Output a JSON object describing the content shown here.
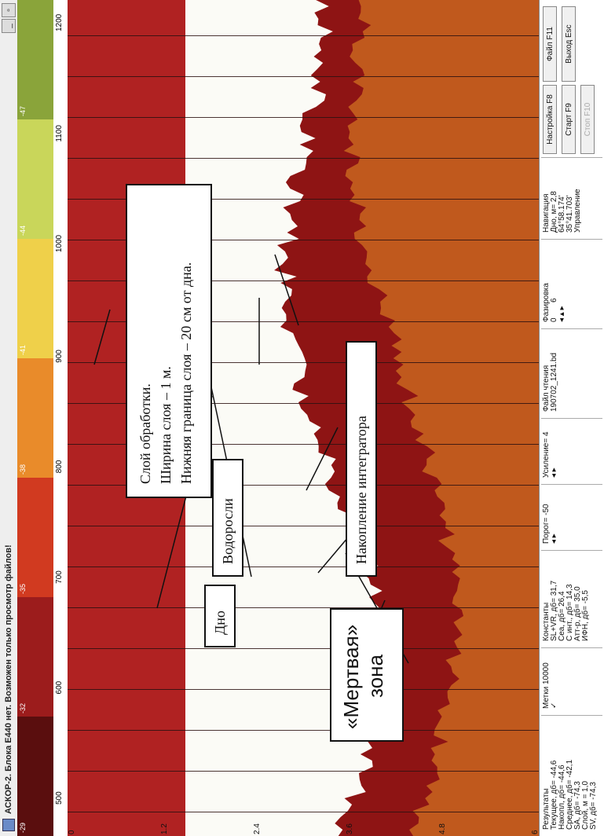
{
  "window": {
    "title": "АСКОР-2. Блока E440 нет. Возможен только просмотр файлов!",
    "btn_minimize": "_",
    "btn_restore": "▫"
  },
  "scale": {
    "labels": [
      "-29",
      "-32",
      "-35",
      "-38",
      "-41",
      "-44",
      "-47"
    ],
    "colors": [
      "#5a0e0e",
      "#9c1c1c",
      "#d13a20",
      "#e98b2a",
      "#efd04a",
      "#c9d65a",
      "#8aa43a"
    ]
  },
  "ruler": {
    "ticks": [
      "500",
      "600",
      "700",
      "800",
      "900",
      "1000",
      "1100",
      "1200"
    ]
  },
  "depth": {
    "ticks": [
      "0",
      "1.2",
      "2.4",
      "3.6",
      "4.8",
      "6"
    ]
  },
  "panel": {
    "results": {
      "title": "Результаты",
      "lines": [
        "Текущее, дб= -44,6",
        "Накопл, дб= -44,6",
        "Среднее, дб= -42,1",
        "SA, дб= -74,3",
        "Слой, м = 1,0",
        "SV, дб= -74,3"
      ]
    },
    "marks": {
      "title": "Метки 10000",
      "check": "✓"
    },
    "constants": {
      "title": "Константы",
      "lines": [
        "SL+VR, дб= 31,7",
        "Сеа, дб= 26,4",
        "С инт., дб= 14,3",
        "Атт-р, дб= 35,0",
        "ИФН, дб= -5,5"
      ]
    },
    "threshold": "Порог= -50",
    "gain": "Усиление= 4",
    "file": {
      "title": "Файл чтения",
      "name": "190702_1241.bd"
    },
    "phase": {
      "title": "Фазировка",
      "min": "0",
      "max": "6"
    },
    "navigation": {
      "title": "Навигация",
      "lines": [
        "Дно, м= 2,8",
        "64°58.174'",
        "35°41.703'"
      ]
    },
    "control": {
      "title": "Управление"
    },
    "buttons": {
      "settings": "Настройка F8",
      "start": "Старт F9",
      "stop": "Стоп F10",
      "file": "Файл F11",
      "exit": "Выход Esc"
    }
  },
  "annotations": {
    "dead_zone_line1": "«Мертвая»",
    "dead_zone_line2": "зона",
    "integrator": "Накопление интегратора",
    "algae": "Водоросли",
    "bottom": "Дно",
    "layer_line1": "Слой обработки.",
    "layer_line2": "Ширина слоя – 1 м.",
    "layer_line3": "Нижняя граница слоя – 20 см от дна."
  }
}
